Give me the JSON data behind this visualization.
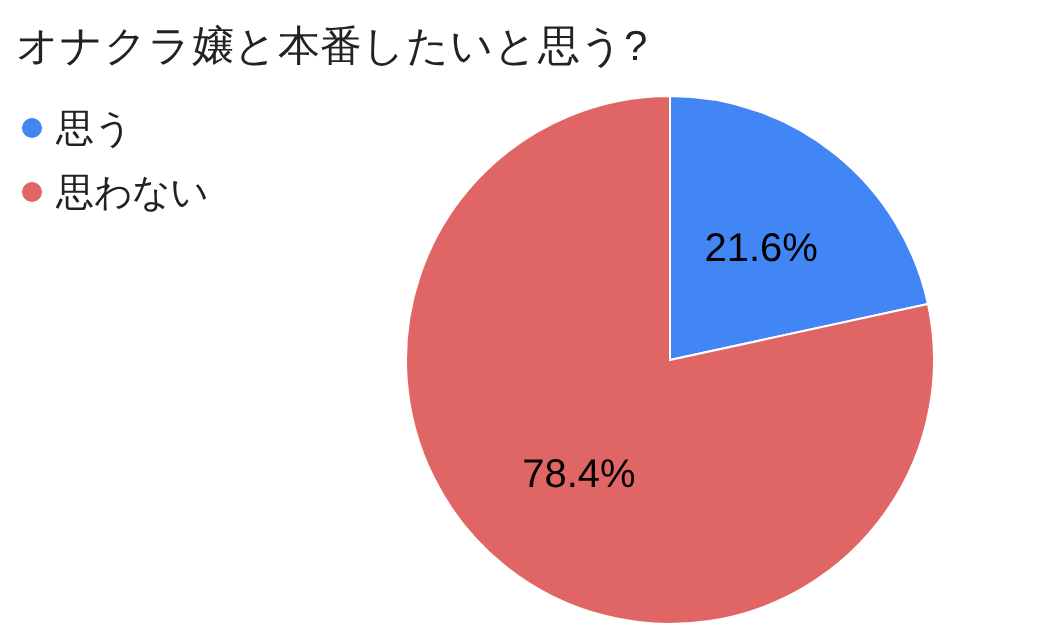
{
  "chart_data": {
    "type": "pie",
    "title": "オナクラ嬢と本番したいと思う?",
    "categories": [
      "思う",
      "思わない"
    ],
    "values": [
      21.6,
      78.4
    ],
    "colors": [
      "#4285f4",
      "#e06666"
    ],
    "value_labels": [
      "21.6%",
      "78.4%"
    ],
    "legend": "top left"
  }
}
